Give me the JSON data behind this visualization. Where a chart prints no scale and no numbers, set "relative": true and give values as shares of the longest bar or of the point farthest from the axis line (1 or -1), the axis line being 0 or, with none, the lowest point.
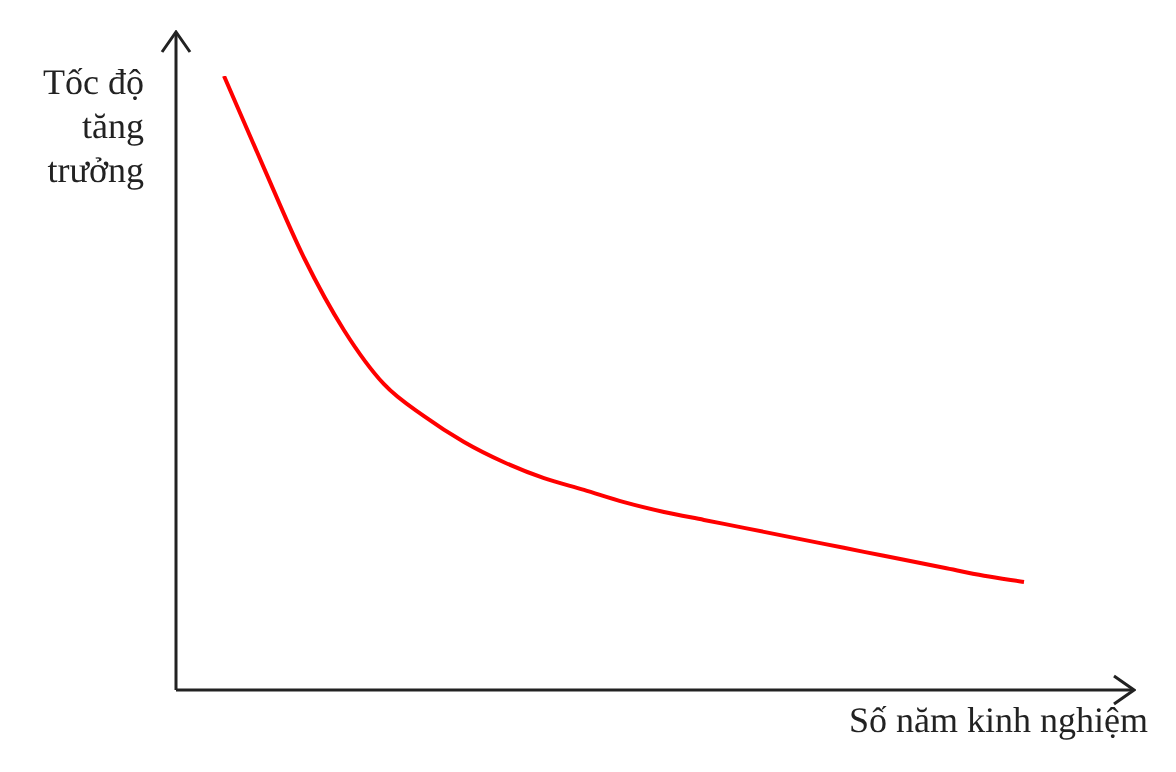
{
  "chart_data": {
    "type": "line",
    "relative": true,
    "xlabel": "Số năm kinh nghiệm",
    "ylabel": "Tốc độ tăng trưởng",
    "marker": "none",
    "line_style": "solid",
    "grid": false,
    "legend": false,
    "categories": [
      null,
      null,
      null,
      null,
      null,
      null,
      null,
      null,
      null,
      null,
      null,
      null,
      null,
      null,
      null,
      null,
      null,
      null,
      null,
      null,
      null
    ],
    "series": [
      {
        "color": "#ff0000",
        "values": [
          1,
          0.85,
          0.704,
          0.586,
          0.498,
          0.446,
          0.404,
          0.371,
          0.345,
          0.326,
          0.306,
          0.29,
          0.277,
          0.264,
          0.251,
          0.238,
          0.225,
          0.212,
          0.199,
          0.186,
          0.176
        ]
      }
    ]
  }
}
